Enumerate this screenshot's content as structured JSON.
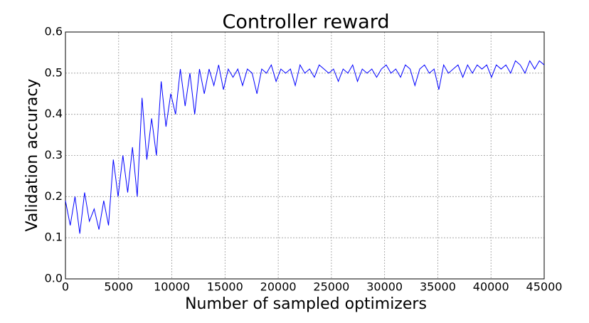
{
  "chart_data": {
    "type": "line",
    "title": "Controller reward",
    "x_label": "Number of sampled optimizers",
    "y_label": "Validation accuracy",
    "x": [
      0,
      450,
      900,
      1350,
      1800,
      2250,
      2700,
      3150,
      3600,
      4050,
      4500,
      4950,
      5400,
      5850,
      6300,
      6750,
      7200,
      7650,
      8100,
      8550,
      9000,
      9450,
      9900,
      10350,
      10800,
      11250,
      11700,
      12150,
      12600,
      13050,
      13500,
      13950,
      14400,
      14850,
      15300,
      15750,
      16200,
      16650,
      17100,
      17550,
      18000,
      18450,
      18900,
      19350,
      19800,
      20250,
      20700,
      21150,
      21600,
      22050,
      22500,
      22950,
      23400,
      23850,
      24300,
      24750,
      25200,
      25650,
      26100,
      26550,
      27000,
      27450,
      27900,
      28350,
      28800,
      29250,
      29700,
      30150,
      30600,
      31050,
      31500,
      31950,
      32400,
      32850,
      33300,
      33750,
      34200,
      34650,
      35100,
      35550,
      36000,
      36450,
      36900,
      37350,
      37800,
      38250,
      38700,
      39150,
      39600,
      40050,
      40500,
      40950,
      41400,
      41850,
      42300,
      42750,
      43200,
      43650,
      44100,
      44550,
      45000
    ],
    "series": [
      {
        "color": "#0000ff",
        "values": [
          0.19,
          0.13,
          0.2,
          0.11,
          0.21,
          0.14,
          0.17,
          0.12,
          0.19,
          0.13,
          0.29,
          0.2,
          0.3,
          0.21,
          0.32,
          0.2,
          0.44,
          0.29,
          0.39,
          0.3,
          0.48,
          0.37,
          0.45,
          0.4,
          0.51,
          0.42,
          0.5,
          0.4,
          0.51,
          0.45,
          0.51,
          0.47,
          0.52,
          0.46,
          0.51,
          0.49,
          0.51,
          0.47,
          0.51,
          0.5,
          0.45,
          0.51,
          0.5,
          0.52,
          0.48,
          0.51,
          0.5,
          0.51,
          0.47,
          0.52,
          0.5,
          0.51,
          0.49,
          0.52,
          0.51,
          0.5,
          0.51,
          0.48,
          0.51,
          0.5,
          0.52,
          0.48,
          0.51,
          0.5,
          0.51,
          0.49,
          0.51,
          0.52,
          0.5,
          0.51,
          0.49,
          0.52,
          0.51,
          0.47,
          0.51,
          0.52,
          0.5,
          0.51,
          0.46,
          0.52,
          0.5,
          0.51,
          0.52,
          0.49,
          0.52,
          0.5,
          0.52,
          0.51,
          0.52,
          0.49,
          0.52,
          0.51,
          0.52,
          0.5,
          0.53,
          0.52,
          0.5,
          0.53,
          0.51,
          0.53,
          0.52
        ]
      }
    ],
    "xlim": [
      0,
      45000
    ],
    "xticks": [
      0,
      5000,
      10000,
      15000,
      20000,
      25000,
      30000,
      35000,
      40000,
      45000
    ],
    "ylim": [
      0,
      0.6
    ],
    "yticks": [
      {
        "value": 0,
        "label": "0.0"
      },
      0.1,
      0.2,
      0.3,
      0.4,
      0.5,
      0.6
    ],
    "grid": true
  }
}
